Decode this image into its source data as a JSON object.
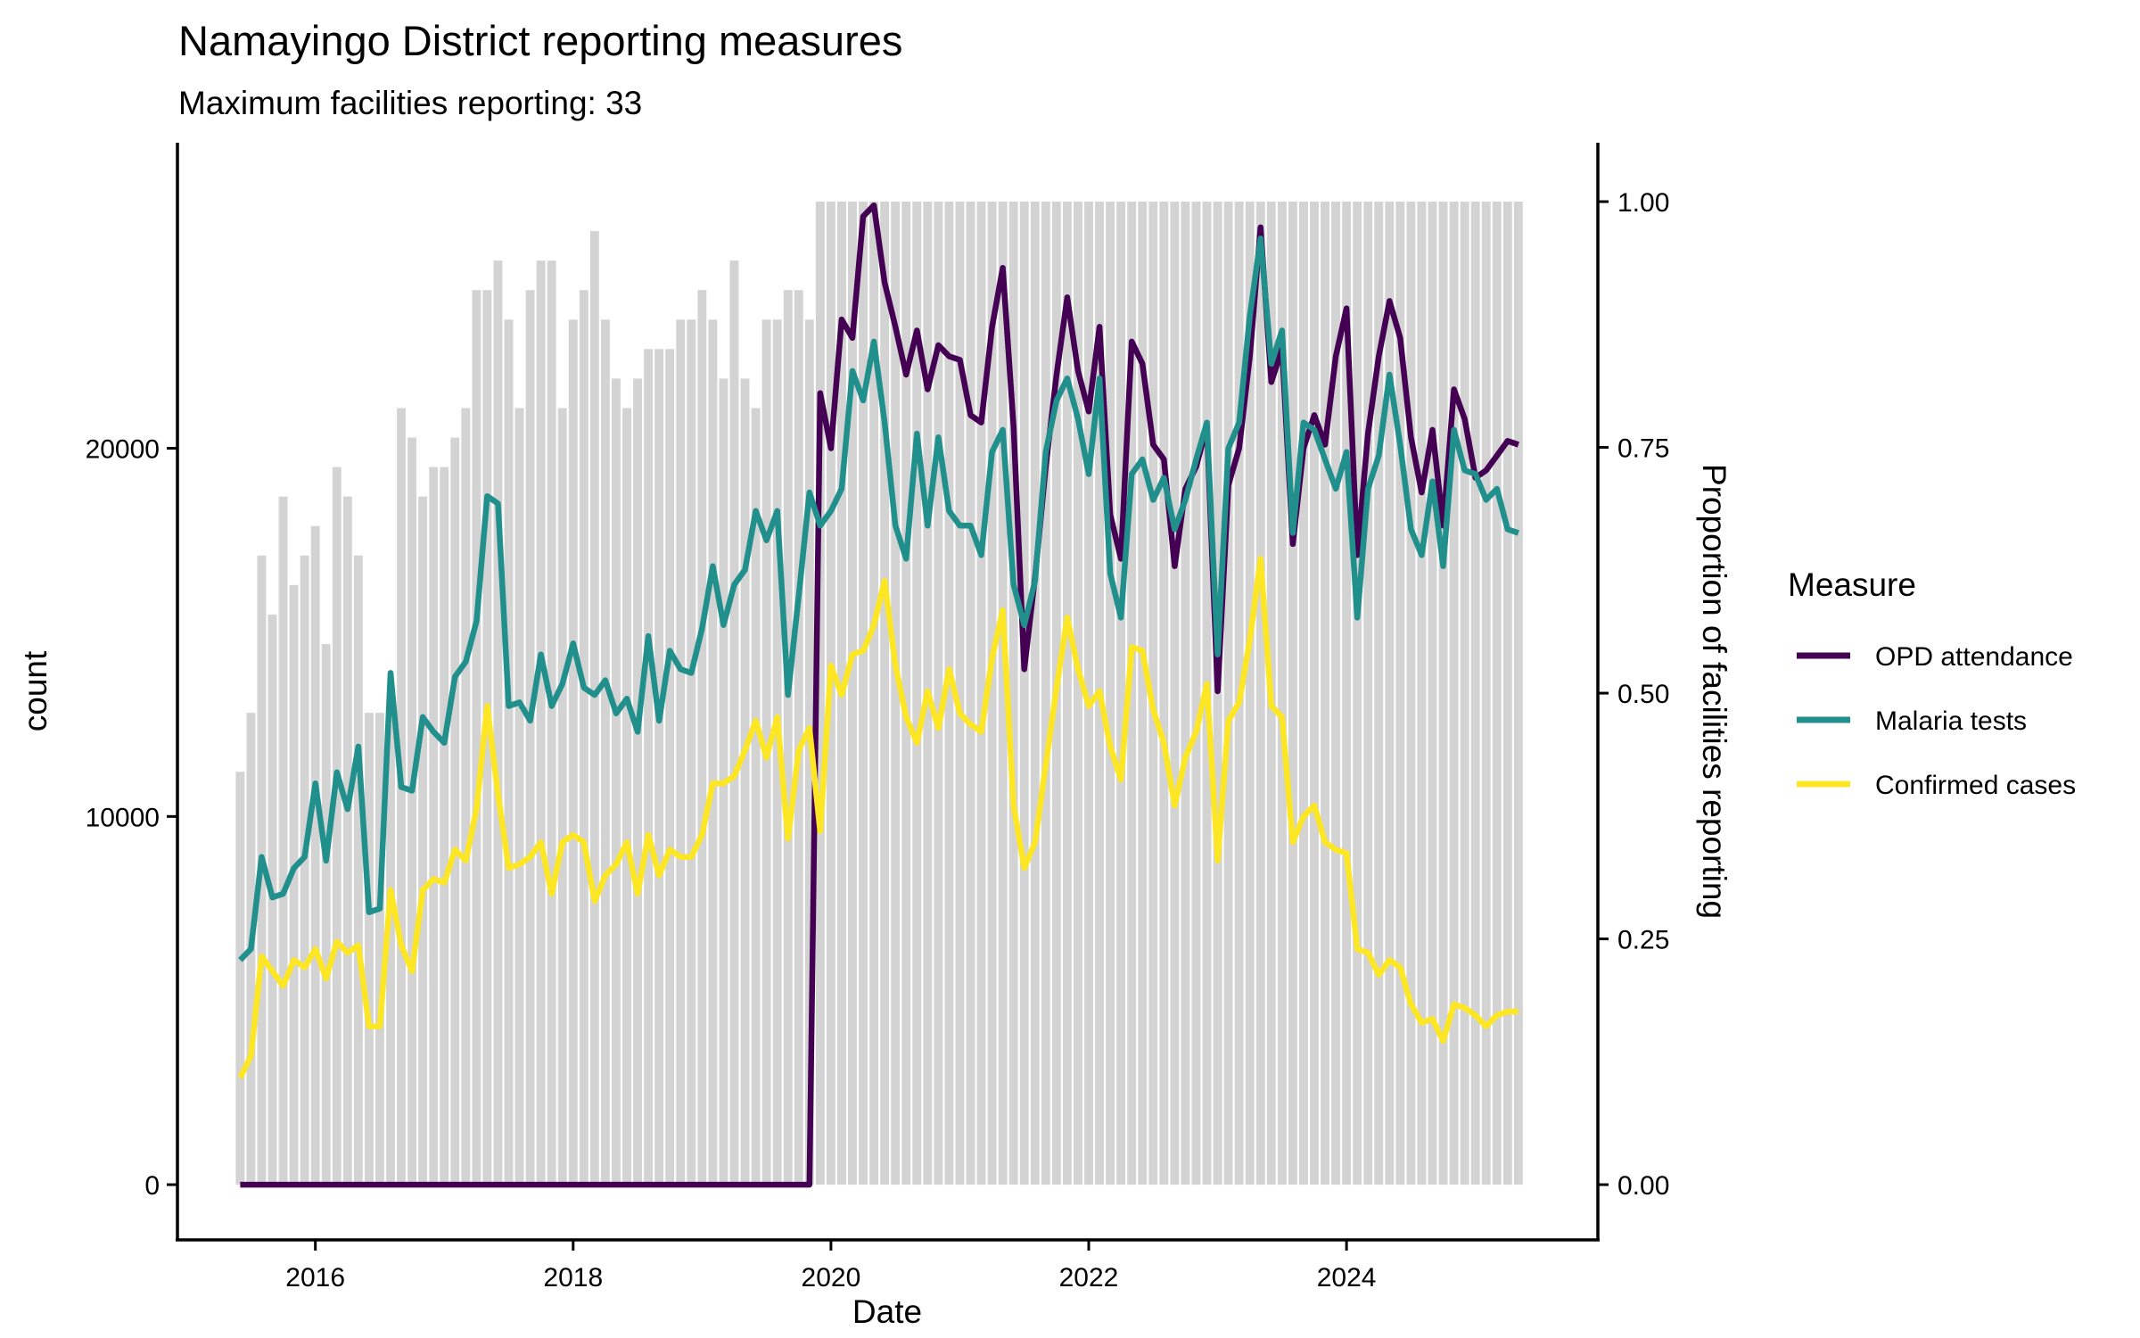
{
  "chart_data": {
    "type": "line",
    "title": "Namayingo District reporting measures",
    "subtitle": "Maximum facilities reporting: 33",
    "xlabel": "Date",
    "ylabel": "count",
    "y2label": "Proportion of facilities reporting",
    "x_ticks": [
      "2016",
      "2018",
      "2020",
      "2022",
      "2024"
    ],
    "x_tick_values": [
      2016,
      2018,
      2020,
      2022,
      2024
    ],
    "xlim": [
      2014.93,
      2025.95
    ],
    "y_ticks": [
      "0",
      "10000",
      "20000"
    ],
    "y_tick_values": [
      0,
      10000,
      20000
    ],
    "ylim": [
      -1500,
      28300
    ],
    "y2_ticks": [
      "0.00",
      "0.25",
      "0.50",
      "0.75",
      "1.00"
    ],
    "y2_tick_values": [
      0,
      0.25,
      0.5,
      0.75,
      1.0
    ],
    "grid": false,
    "legend": {
      "title": "Measure",
      "placement": "right",
      "entries": [
        "OPD attendance",
        "Malaria tests",
        "Confirmed cases"
      ]
    },
    "colors": {
      "OPD attendance": "#440154",
      "Malaria tests": "#21908C",
      "Confirmed cases": "#FDE725",
      "bars": "#D3D3D3"
    },
    "start_month": "2015-06",
    "bars": {
      "name": "Proportion of facilities reporting",
      "values": [
        0.42,
        0.48,
        0.64,
        0.58,
        0.7,
        0.61,
        0.64,
        0.67,
        0.55,
        0.73,
        0.7,
        0.64,
        0.48,
        0.48,
        0.48,
        0.79,
        0.76,
        0.7,
        0.73,
        0.73,
        0.76,
        0.79,
        0.91,
        0.91,
        0.94,
        0.88,
        0.79,
        0.91,
        0.94,
        0.94,
        0.79,
        0.88,
        0.91,
        0.97,
        0.88,
        0.82,
        0.79,
        0.82,
        0.85,
        0.85,
        0.85,
        0.88,
        0.88,
        0.91,
        0.88,
        0.82,
        0.94,
        0.82,
        0.79,
        0.88,
        0.88,
        0.91,
        0.91,
        0.88,
        1.0,
        1.0,
        1.0,
        1.0,
        1.0,
        1.0,
        1.0,
        1.0,
        1.0,
        1.0,
        1.0,
        1.0,
        1.0,
        1.0,
        1.0,
        1.0,
        1.0,
        1.0,
        1.0,
        1.0,
        1.0,
        1.0,
        1.0,
        1.0,
        1.0,
        1.0,
        1.0,
        1.0,
        1.0,
        1.0,
        1.0,
        1.0,
        1.0,
        1.0,
        1.0,
        1.0,
        1.0,
        1.0,
        1.0,
        1.0,
        1.0,
        1.0,
        1.0,
        1.0,
        1.0,
        1.0,
        1.0,
        1.0,
        1.0,
        1.0,
        1.0,
        1.0,
        1.0,
        1.0,
        1.0,
        1.0,
        1.0,
        1.0,
        1.0,
        1.0,
        1.0,
        1.0,
        1.0,
        1.0,
        1.0,
        1.0
      ]
    },
    "series": [
      {
        "name": "OPD attendance",
        "values": [
          0,
          0,
          0,
          0,
          0,
          0,
          0,
          0,
          0,
          0,
          0,
          0,
          0,
          0,
          0,
          0,
          0,
          0,
          0,
          0,
          0,
          0,
          0,
          0,
          0,
          0,
          0,
          0,
          0,
          0,
          0,
          0,
          0,
          0,
          0,
          0,
          0,
          0,
          0,
          0,
          0,
          0,
          0,
          0,
          0,
          0,
          0,
          0,
          0,
          0,
          0,
          0,
          0,
          0,
          21500,
          20000,
          23500,
          23000,
          26300,
          26600,
          24500,
          23300,
          22000,
          23200,
          21600,
          22800,
          22500,
          22400,
          20900,
          20700,
          23300,
          24900,
          20600,
          14000,
          16500,
          19500,
          22000,
          24100,
          22100,
          21000,
          23300,
          18200,
          17000,
          22900,
          22300,
          20100,
          19700,
          16800,
          18900,
          19500,
          20600,
          13400,
          19000,
          20000,
          22500,
          26000,
          21800,
          22700,
          17400,
          20000,
          20900,
          20100,
          22500,
          23800,
          17100,
          20400,
          22500,
          24000,
          23000,
          20300,
          18800,
          20500,
          17900,
          21600,
          20800,
          19200,
          19400,
          19800,
          20200,
          20100
        ]
      },
      {
        "name": "Malaria tests",
        "values": [
          6100,
          6400,
          8900,
          7800,
          7900,
          8600,
          8900,
          10900,
          8800,
          11200,
          10200,
          11900,
          7400,
          7500,
          13900,
          10800,
          10700,
          12700,
          12300,
          12000,
          13800,
          14200,
          15300,
          18700,
          18500,
          13000,
          13100,
          12600,
          14400,
          13000,
          13600,
          14700,
          13500,
          13300,
          13700,
          12800,
          13200,
          12300,
          14900,
          12600,
          14500,
          14000,
          13900,
          15100,
          16800,
          15200,
          16300,
          16700,
          18300,
          17500,
          18300,
          13300,
          16000,
          18800,
          17900,
          18300,
          18900,
          22100,
          21300,
          22900,
          20700,
          17900,
          17000,
          20400,
          17900,
          20300,
          18300,
          17900,
          17900,
          17100,
          19900,
          20500,
          16300,
          15200,
          16400,
          19900,
          21300,
          21900,
          20800,
          19300,
          21900,
          16600,
          15400,
          19300,
          19700,
          18600,
          19200,
          17800,
          18600,
          19700,
          20700,
          14400,
          20000,
          20700,
          23600,
          25700,
          22300,
          23200,
          17700,
          20700,
          20500,
          19700,
          18900,
          19900,
          15400,
          18900,
          19800,
          22000,
          20100,
          17800,
          17100,
          19100,
          16800,
          20500,
          19400,
          19300,
          18600,
          18900,
          17800,
          17700
        ]
      },
      {
        "name": "Confirmed cases",
        "values": [
          2900,
          3500,
          6200,
          5800,
          5400,
          6100,
          5900,
          6400,
          5600,
          6600,
          6300,
          6500,
          4300,
          4300,
          8000,
          6500,
          5800,
          8000,
          8300,
          8200,
          9100,
          8800,
          10200,
          13000,
          10600,
          8600,
          8700,
          8900,
          9300,
          7900,
          9300,
          9500,
          9300,
          7700,
          8400,
          8700,
          9300,
          7900,
          9500,
          8400,
          9100,
          8900,
          8900,
          9500,
          10900,
          10900,
          11100,
          11800,
          12600,
          11600,
          12700,
          9400,
          11800,
          12400,
          9600,
          14100,
          13300,
          14400,
          14500,
          15200,
          16400,
          14100,
          12700,
          12000,
          13400,
          12400,
          14000,
          12800,
          12500,
          12300,
          14300,
          15600,
          10300,
          8600,
          9300,
          11400,
          13500,
          15400,
          14000,
          13000,
          13400,
          11900,
          11000,
          14600,
          14500,
          12900,
          12000,
          10300,
          11600,
          12300,
          13600,
          8800,
          12600,
          13100,
          14800,
          17000,
          13000,
          12700,
          9300,
          10000,
          10300,
          9300,
          9100,
          9000,
          6400,
          6300,
          5700,
          6100,
          5900,
          4900,
          4400,
          4500,
          3900,
          4900,
          4800,
          4600,
          4300,
          4600,
          4700,
          4700
        ]
      }
    ]
  }
}
